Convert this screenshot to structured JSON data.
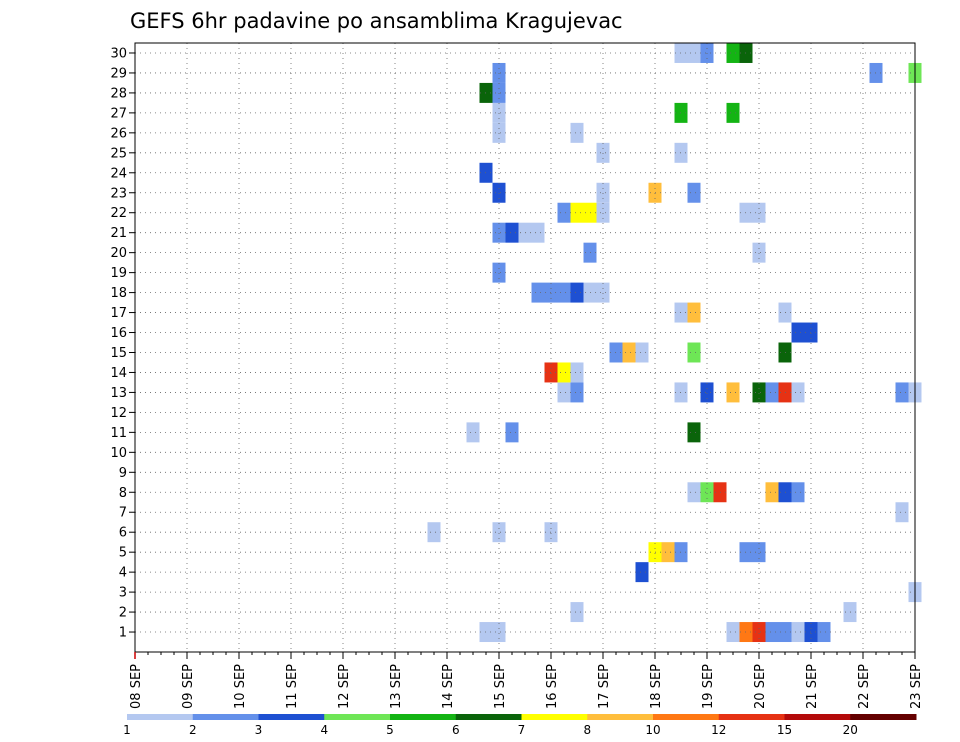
{
  "chart_data": {
    "type": "heatmap",
    "title": "GEFS 6hr padavine po ansamblima Kragujevac",
    "xlabel": "",
    "ylabel": "",
    "x_ticks": [
      "08 SEP",
      "09 SEP",
      "10 SEP",
      "11 SEP",
      "12 SEP",
      "13 SEP",
      "14 SEP",
      "15 SEP",
      "16 SEP",
      "17 SEP",
      "18 SEP",
      "19 SEP",
      "20 SEP",
      "21 SEP",
      "22 SEP",
      "23 SEP"
    ],
    "y_ticks": [
      "1",
      "2",
      "3",
      "4",
      "5",
      "6",
      "7",
      "8",
      "9",
      "10",
      "11",
      "12",
      "13",
      "14",
      "15",
      "16",
      "17",
      "18",
      "19",
      "20",
      "21",
      "22",
      "23",
      "24",
      "25",
      "26",
      "27",
      "28",
      "29",
      "30"
    ],
    "x_unit": "6-hour steps from 08 SEP 00z",
    "grid": true,
    "colorbar": {
      "labels": [
        "1",
        "2",
        "3",
        "4",
        "5",
        "6",
        "7",
        "8",
        "10",
        "12",
        "15",
        "20"
      ],
      "colors": [
        "#b4c8f0",
        "#6490ea",
        "#1e50d2",
        "#6ee656",
        "#14b414",
        "#0a640a",
        "#ffff00",
        "#ffbe3c",
        "#ff7814",
        "#e63214",
        "#b40a0a",
        "#640000"
      ]
    },
    "cells": [
      {
        "member": 1,
        "step": 27,
        "bin": 0
      },
      {
        "member": 1,
        "step": 28,
        "bin": 0
      },
      {
        "member": 1,
        "step": 46,
        "bin": 0
      },
      {
        "member": 1,
        "step": 47,
        "bin": 8
      },
      {
        "member": 1,
        "step": 48,
        "bin": 9
      },
      {
        "member": 1,
        "step": 49,
        "bin": 1
      },
      {
        "member": 1,
        "step": 50,
        "bin": 1
      },
      {
        "member": 1,
        "step": 51,
        "bin": 0
      },
      {
        "member": 1,
        "step": 52,
        "bin": 2
      },
      {
        "member": 1,
        "step": 53,
        "bin": 1
      },
      {
        "member": 2,
        "step": 34,
        "bin": 0
      },
      {
        "member": 2,
        "step": 55,
        "bin": 0
      },
      {
        "member": 3,
        "step": 60,
        "bin": 0
      },
      {
        "member": 4,
        "step": 39,
        "bin": 2
      },
      {
        "member": 5,
        "step": 40,
        "bin": 6
      },
      {
        "member": 5,
        "step": 41,
        "bin": 7
      },
      {
        "member": 5,
        "step": 42,
        "bin": 1
      },
      {
        "member": 5,
        "step": 47,
        "bin": 1
      },
      {
        "member": 5,
        "step": 48,
        "bin": 1
      },
      {
        "member": 6,
        "step": 23,
        "bin": 0
      },
      {
        "member": 6,
        "step": 28,
        "bin": 0
      },
      {
        "member": 6,
        "step": 32,
        "bin": 0
      },
      {
        "member": 7,
        "step": 59,
        "bin": 0
      },
      {
        "member": 8,
        "step": 43,
        "bin": 0
      },
      {
        "member": 8,
        "step": 44,
        "bin": 3
      },
      {
        "member": 8,
        "step": 45,
        "bin": 9
      },
      {
        "member": 8,
        "step": 49,
        "bin": 7
      },
      {
        "member": 8,
        "step": 50,
        "bin": 2
      },
      {
        "member": 8,
        "step": 51,
        "bin": 1
      },
      {
        "member": 11,
        "step": 26,
        "bin": 0
      },
      {
        "member": 11,
        "step": 29,
        "bin": 1
      },
      {
        "member": 11,
        "step": 43,
        "bin": 5
      },
      {
        "member": 13,
        "step": 33,
        "bin": 0
      },
      {
        "member": 13,
        "step": 34,
        "bin": 1
      },
      {
        "member": 13,
        "step": 42,
        "bin": 0
      },
      {
        "member": 13,
        "step": 44,
        "bin": 2
      },
      {
        "member": 13,
        "step": 46,
        "bin": 7
      },
      {
        "member": 13,
        "step": 48,
        "bin": 5
      },
      {
        "member": 13,
        "step": 49,
        "bin": 1
      },
      {
        "member": 13,
        "step": 50,
        "bin": 9
      },
      {
        "member": 13,
        "step": 51,
        "bin": 0
      },
      {
        "member": 13,
        "step": 59,
        "bin": 1
      },
      {
        "member": 13,
        "step": 60,
        "bin": 0
      },
      {
        "member": 14,
        "step": 32,
        "bin": 9
      },
      {
        "member": 14,
        "step": 33,
        "bin": 6
      },
      {
        "member": 14,
        "step": 34,
        "bin": 0
      },
      {
        "member": 15,
        "step": 37,
        "bin": 1
      },
      {
        "member": 15,
        "step": 38,
        "bin": 7
      },
      {
        "member": 15,
        "step": 39,
        "bin": 0
      },
      {
        "member": 15,
        "step": 43,
        "bin": 3
      },
      {
        "member": 15,
        "step": 50,
        "bin": 5
      },
      {
        "member": 16,
        "step": 51,
        "bin": 2
      },
      {
        "member": 16,
        "step": 52,
        "bin": 2
      },
      {
        "member": 17,
        "step": 42,
        "bin": 0
      },
      {
        "member": 17,
        "step": 43,
        "bin": 7
      },
      {
        "member": 17,
        "step": 50,
        "bin": 0
      },
      {
        "member": 18,
        "step": 31,
        "bin": 1
      },
      {
        "member": 18,
        "step": 32,
        "bin": 1
      },
      {
        "member": 18,
        "step": 33,
        "bin": 1
      },
      {
        "member": 18,
        "step": 34,
        "bin": 2
      },
      {
        "member": 18,
        "step": 35,
        "bin": 0
      },
      {
        "member": 18,
        "step": 36,
        "bin": 0
      },
      {
        "member": 19,
        "step": 28,
        "bin": 1
      },
      {
        "member": 20,
        "step": 35,
        "bin": 1
      },
      {
        "member": 20,
        "step": 48,
        "bin": 0
      },
      {
        "member": 21,
        "step": 28,
        "bin": 1
      },
      {
        "member": 21,
        "step": 29,
        "bin": 2
      },
      {
        "member": 21,
        "step": 30,
        "bin": 0
      },
      {
        "member": 21,
        "step": 31,
        "bin": 0
      },
      {
        "member": 22,
        "step": 33,
        "bin": 1
      },
      {
        "member": 22,
        "step": 34,
        "bin": 6
      },
      {
        "member": 22,
        "step": 35,
        "bin": 6
      },
      {
        "member": 22,
        "step": 36,
        "bin": 0
      },
      {
        "member": 22,
        "step": 47,
        "bin": 0
      },
      {
        "member": 22,
        "step": 48,
        "bin": 0
      },
      {
        "member": 23,
        "step": 28,
        "bin": 2
      },
      {
        "member": 23,
        "step": 36,
        "bin": 0
      },
      {
        "member": 23,
        "step": 40,
        "bin": 7
      },
      {
        "member": 23,
        "step": 43,
        "bin": 1
      },
      {
        "member": 24,
        "step": 27,
        "bin": 2
      },
      {
        "member": 25,
        "step": 36,
        "bin": 0
      },
      {
        "member": 25,
        "step": 42,
        "bin": 0
      },
      {
        "member": 26,
        "step": 28,
        "bin": 0
      },
      {
        "member": 26,
        "step": 34,
        "bin": 0
      },
      {
        "member": 27,
        "step": 28,
        "bin": 0
      },
      {
        "member": 27,
        "step": 42,
        "bin": 4
      },
      {
        "member": 27,
        "step": 46,
        "bin": 4
      },
      {
        "member": 28,
        "step": 27,
        "bin": 5
      },
      {
        "member": 28,
        "step": 28,
        "bin": 1
      },
      {
        "member": 29,
        "step": 28,
        "bin": 1
      },
      {
        "member": 29,
        "step": 57,
        "bin": 1
      },
      {
        "member": 29,
        "step": 60,
        "bin": 3
      },
      {
        "member": 30,
        "step": 42,
        "bin": 0
      },
      {
        "member": 30,
        "step": 43,
        "bin": 0
      },
      {
        "member": 30,
        "step": 44,
        "bin": 1
      },
      {
        "member": 30,
        "step": 46,
        "bin": 4
      },
      {
        "member": 30,
        "step": 47,
        "bin": 5
      }
    ]
  }
}
